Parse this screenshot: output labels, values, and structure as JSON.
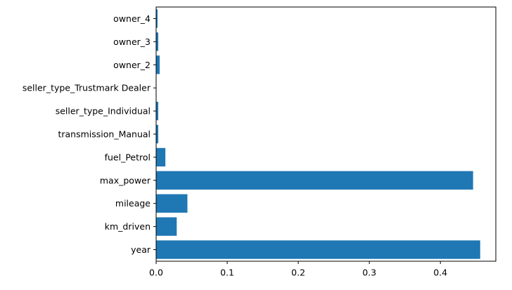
{
  "chart_data": {
    "type": "bar",
    "orientation": "horizontal",
    "categories": [
      "year",
      "km_driven",
      "mileage",
      "max_power",
      "fuel_Petrol",
      "transmission_Manual",
      "seller_type_Individual",
      "seller_type_Trustmark Dealer",
      "owner_2",
      "owner_3",
      "owner_4"
    ],
    "values": [
      0.456,
      0.029,
      0.044,
      0.446,
      0.013,
      0.003,
      0.003,
      0.0005,
      0.005,
      0.003,
      0.002
    ],
    "title": "",
    "xlabel": "",
    "ylabel": "",
    "xlim": [
      0,
      0.478
    ],
    "xticks": [
      "0.0",
      "0.1",
      "0.2",
      "0.3",
      "0.4"
    ],
    "grid": false,
    "bar_color": "#1f77b4"
  }
}
